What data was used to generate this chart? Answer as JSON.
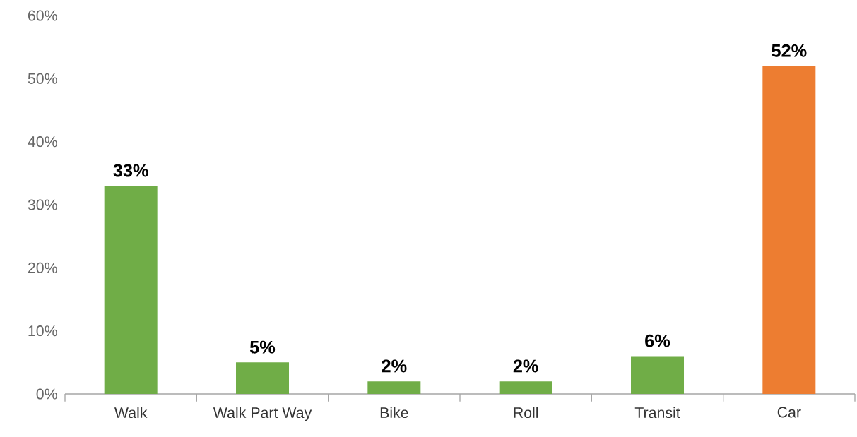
{
  "chart_data": {
    "type": "bar",
    "categories": [
      "Walk",
      "Walk Part Way",
      "Bike",
      "Roll",
      "Transit",
      "Car"
    ],
    "values": [
      33,
      5,
      2,
      2,
      6,
      52
    ],
    "value_labels": [
      "33%",
      "5%",
      "2%",
      "2%",
      "6%",
      "52%"
    ],
    "colors": [
      "#70ad47",
      "#70ad47",
      "#70ad47",
      "#70ad47",
      "#70ad47",
      "#ed7d31"
    ],
    "ylim": [
      0,
      60
    ],
    "yticks": [
      {
        "value": 0,
        "label": "0%"
      },
      {
        "value": 10,
        "label": "10%"
      },
      {
        "value": 20,
        "label": "20%"
      },
      {
        "value": 30,
        "label": "30%"
      },
      {
        "value": 40,
        "label": "40%"
      },
      {
        "value": 50,
        "label": "50%"
      },
      {
        "value": 60,
        "label": "60%"
      }
    ],
    "grid": false
  }
}
